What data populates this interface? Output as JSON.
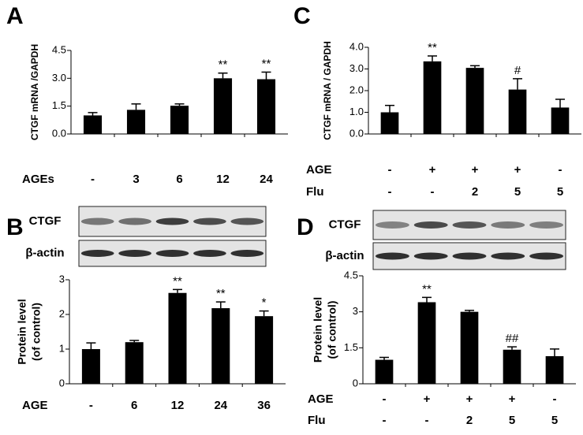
{
  "chart_data": [
    {
      "type": "bar",
      "panel": "A",
      "y_label": [
        "CTGF mRNA /GAPDH"
      ],
      "rows": [
        {
          "label": "AGEs",
          "categories": [
            "-",
            "3",
            "6",
            "12",
            "24"
          ]
        }
      ],
      "values": [
        1.0,
        1.3,
        1.52,
        3.0,
        2.95
      ],
      "errors": [
        0.15,
        0.32,
        0.1,
        0.28,
        0.38
      ],
      "annotations": [
        {
          "index": 3,
          "text": "**"
        },
        {
          "index": 4,
          "text": "**"
        }
      ],
      "ylim": [
        0,
        4.5
      ],
      "yticks": [
        {
          "value": 0,
          "label": "0.0"
        },
        1.5,
        {
          "value": 3,
          "label": "3.0"
        },
        4.5
      ],
      "color": "#000000"
    },
    {
      "type": "bar",
      "panel": "B",
      "y_label": [
        "Protein level",
        "(of control)"
      ],
      "blot": [
        "CTGF",
        "β-actin"
      ],
      "rows": [
        {
          "label": "AGE",
          "categories": [
            "-",
            "6",
            "12",
            "24",
            "36"
          ]
        }
      ],
      "values": [
        1.0,
        1.2,
        2.62,
        2.18,
        1.95
      ],
      "errors": [
        0.18,
        0.05,
        0.1,
        0.18,
        0.15
      ],
      "annotations": [
        {
          "index": 2,
          "text": "**"
        },
        {
          "index": 3,
          "text": "**"
        },
        {
          "index": 4,
          "text": "*"
        }
      ],
      "ylim": [
        0,
        3
      ],
      "yticks": [
        0,
        1,
        2,
        3
      ],
      "color": "#000000"
    },
    {
      "type": "bar",
      "panel": "C",
      "y_label": [
        "CTGF mRNA / GAPDH"
      ],
      "rows": [
        {
          "label": "AGE",
          "categories": [
            "-",
            "+",
            "+",
            "+",
            "-"
          ]
        },
        {
          "label": "Flu",
          "categories": [
            "-",
            "-",
            "2",
            "5",
            "5"
          ]
        }
      ],
      "values": [
        1.0,
        3.35,
        3.05,
        2.05,
        1.22
      ],
      "errors": [
        0.32,
        0.25,
        0.1,
        0.5,
        0.38
      ],
      "annotations": [
        {
          "index": 1,
          "text": "**"
        },
        {
          "index": 3,
          "text": "#"
        }
      ],
      "ylim": [
        0,
        4
      ],
      "yticks": [
        {
          "value": 0,
          "label": "0.0"
        },
        {
          "value": 1,
          "label": "1.0"
        },
        {
          "value": 2,
          "label": "2.0"
        },
        {
          "value": 3,
          "label": "3.0"
        },
        {
          "value": 4,
          "label": "4.0"
        }
      ],
      "color": "#000000"
    },
    {
      "type": "bar",
      "panel": "D",
      "y_label": [
        "Protein level",
        "(of control)"
      ],
      "blot": [
        "CTGF",
        "β-actin"
      ],
      "rows": [
        {
          "label": "AGE",
          "categories": [
            "-",
            "+",
            "+",
            "+",
            "-"
          ]
        },
        {
          "label": "Flu",
          "categories": [
            "-",
            "-",
            "2",
            "5",
            "5"
          ]
        }
      ],
      "values": [
        1.0,
        3.4,
        3.0,
        1.42,
        1.15
      ],
      "errors": [
        0.1,
        0.2,
        0.06,
        0.12,
        0.3
      ],
      "annotations": [
        {
          "index": 1,
          "text": "**"
        },
        {
          "index": 3,
          "text": "##"
        }
      ],
      "ylim": [
        0,
        4.5
      ],
      "yticks": [
        0,
        1.5,
        3,
        4.5
      ],
      "color": "#000000"
    }
  ]
}
